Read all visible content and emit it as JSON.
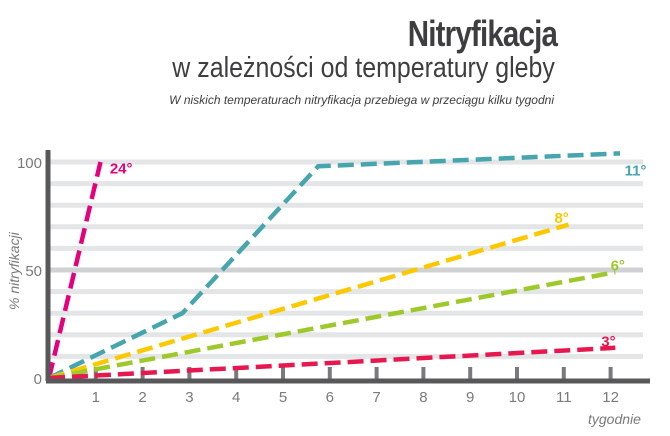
{
  "header": {
    "title": "Nitryfikacja",
    "subtitle": "w zależności od temperatury gleby",
    "note": "W niskich temperaturach nitryfikacja przebiega w przeciągu kilku tygodni"
  },
  "axes": {
    "ylabel": "% nitryfikacji",
    "xlabel": "tygodnie",
    "yticks": [
      "0",
      "50",
      "100"
    ],
    "xticks": [
      "1",
      "2",
      "3",
      "4",
      "5",
      "6",
      "7",
      "8",
      "9",
      "10",
      "11",
      "12"
    ]
  },
  "colors": {
    "axis": "#58585a",
    "grid": "#e4e5e6",
    "grid_major": "#d0d1d3",
    "text": "#3e3e40",
    "tick_text": "#7a7a7c"
  },
  "chart_data": {
    "type": "line",
    "title": "Nitryfikacja",
    "subtitle": "w zależności od temperatury gleby",
    "annotation": "W niskich temperaturach nitryfikacja przebiega w przeciągu kilku tygodni",
    "xlabel": "tygodnie",
    "ylabel": "% nitryfikacji",
    "xlim": [
      0,
      12.5
    ],
    "ylim": [
      0,
      100
    ],
    "xticks": [
      1,
      2,
      3,
      4,
      5,
      6,
      7,
      8,
      9,
      10,
      11,
      12
    ],
    "yticks": [
      0,
      50,
      100
    ],
    "grid": "horizontal every 10%",
    "line_style": "dashed",
    "series": [
      {
        "name": "24°",
        "color": "#e6007e",
        "points": [
          [
            0,
            0
          ],
          [
            1.1,
            100
          ]
        ]
      },
      {
        "name": "11°",
        "color": "#46a5ad",
        "points": [
          [
            0,
            0
          ],
          [
            2.85,
            30
          ],
          [
            5.75,
            98
          ],
          [
            12.2,
            104
          ]
        ]
      },
      {
        "name": "8°",
        "color": "#fcc800",
        "points": [
          [
            0,
            0
          ],
          [
            11.1,
            71
          ]
        ]
      },
      {
        "name": "6°",
        "color": "#9ec92b",
        "points": [
          [
            0,
            0
          ],
          [
            12.1,
            49
          ]
        ]
      },
      {
        "name": "3°",
        "color": "#e7184f",
        "points": [
          [
            0,
            0
          ],
          [
            12.1,
            14
          ]
        ]
      }
    ],
    "labels": [
      {
        "text": "24°",
        "x": 1.3,
        "y": 97
      },
      {
        "text": "11°",
        "x": 12.3,
        "y": 96
      },
      {
        "text": "8°",
        "x": 10.8,
        "y": 74
      },
      {
        "text": "6°",
        "x": 12.0,
        "y": 52
      },
      {
        "text": "3°",
        "x": 11.8,
        "y": 17
      }
    ]
  }
}
